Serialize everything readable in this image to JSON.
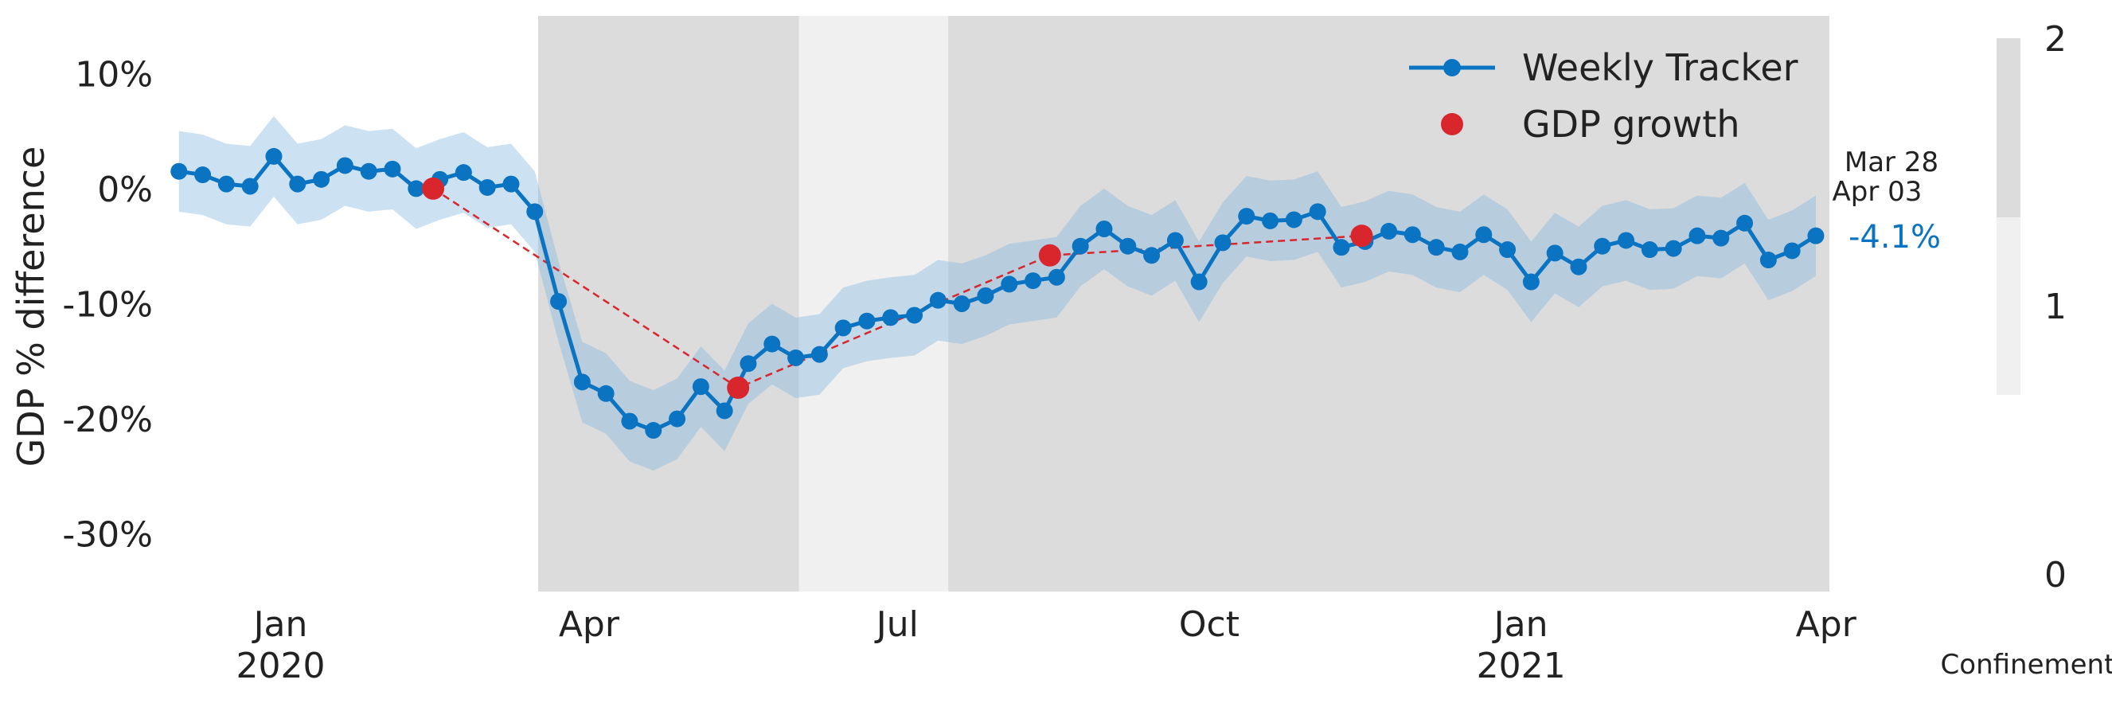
{
  "chart_data": {
    "type": "line",
    "ylabel": "GDP % difference",
    "ylim": [
      -35,
      15
    ],
    "yticks": [
      10,
      0,
      -10,
      -20,
      -30
    ],
    "ytick_labels": [
      "10%",
      "0%",
      "-10%",
      "-20%",
      "-30%"
    ],
    "xlim": [
      "2019-11-29",
      "2021-04-02"
    ],
    "xticks": [
      {
        "date": "2020-01-01",
        "label": "Jan",
        "year": "2020"
      },
      {
        "date": "2020-04-01",
        "label": "Apr",
        "year": ""
      },
      {
        "date": "2020-07-01",
        "label": "Jul",
        "year": ""
      },
      {
        "date": "2020-10-01",
        "label": "Oct",
        "year": ""
      },
      {
        "date": "2021-01-01",
        "label": "Jan",
        "year": "2021"
      },
      {
        "date": "2021-04-01",
        "label": "Apr",
        "year": ""
      }
    ],
    "series": [
      {
        "name": "Weekly Tracker",
        "color": "#0a73c2",
        "band_color": "#7fb6de",
        "start_date": "2019-12-02",
        "step_days": 7,
        "values": [
          1.5,
          1.2,
          0.4,
          0.2,
          2.8,
          0.4,
          0.8,
          2.0,
          1.5,
          1.7,
          0.0,
          0.8,
          1.4,
          0.1,
          0.4,
          -2.0,
          -9.8,
          -16.8,
          -17.8,
          -20.2,
          -21.0,
          -20.0,
          -17.2,
          -19.3,
          -15.2,
          -13.5,
          -14.7,
          -14.4,
          -12.1,
          -11.5,
          -11.2,
          -11.0,
          -9.7,
          -10.0,
          -9.3,
          -8.3,
          -8.0,
          -7.7,
          -5.0,
          -3.5,
          -5.0,
          -5.8,
          -4.5,
          -8.1,
          -4.7,
          -2.4,
          -2.8,
          -2.7,
          -2.0,
          -5.1,
          -4.6,
          -3.7,
          -4.0,
          -5.1,
          -5.5,
          -4.0,
          -5.3,
          -8.1,
          -5.6,
          -6.8,
          -5.0,
          -4.5,
          -5.3,
          -5.2,
          -4.1,
          -4.3,
          -3.0,
          -6.2,
          -5.4,
          -4.1
        ],
        "band_halfwidth": [
          3.5,
          3.5,
          3.5,
          3.5,
          3.5,
          3.5,
          3.5,
          3.5,
          3.5,
          3.5,
          3.5,
          3.5,
          3.5,
          3.5,
          3.5,
          3.5,
          3.5,
          3.5,
          3.5,
          3.5,
          3.5,
          3.5,
          3.5,
          3.5,
          3.5,
          3.5,
          3.5,
          3.5,
          3.5,
          3.5,
          3.5,
          3.5,
          3.5,
          3.5,
          3.5,
          3.5,
          3.5,
          3.5,
          3.5,
          3.5,
          3.5,
          3.5,
          3.5,
          3.5,
          3.5,
          3.5,
          3.5,
          3.5,
          3.5,
          3.5,
          3.5,
          3.5,
          3.5,
          3.5,
          3.5,
          3.5,
          3.5,
          3.5,
          3.5,
          3.5,
          3.5,
          3.5,
          3.5,
          3.5,
          3.5,
          3.5,
          3.5,
          3.5,
          3.5,
          3.5
        ]
      },
      {
        "name": "GDP growth",
        "color": "#d9262c",
        "points": [
          {
            "date": "2020-02-15",
            "value": 0.0
          },
          {
            "date": "2020-05-15",
            "value": -17.3
          },
          {
            "date": "2020-08-15",
            "value": -5.8
          },
          {
            "date": "2020-11-15",
            "value": -4.1
          }
        ]
      }
    ],
    "confinement_periods": [
      {
        "start": "2020-03-17",
        "end": "2020-06-02",
        "level": 2
      },
      {
        "start": "2020-06-02",
        "end": "2020-07-16",
        "level": 1
      },
      {
        "start": "2020-07-16",
        "end": "2021-04-02",
        "level": 2
      }
    ],
    "confinement_colors": {
      "level1": "#f0f0f0",
      "level2": "#dcdcdc"
    },
    "last_value_label": "-4.1%",
    "last_period": {
      "line1": "Mar 28",
      "line2": "Apr 03"
    },
    "legend_position": "top-right",
    "grid": false,
    "colorbar": {
      "label": "Confinement",
      "ticks": [
        {
          "value": 2,
          "label": "2"
        },
        {
          "value": 1,
          "label": "1"
        },
        {
          "value": 0,
          "label": "0"
        }
      ]
    }
  }
}
